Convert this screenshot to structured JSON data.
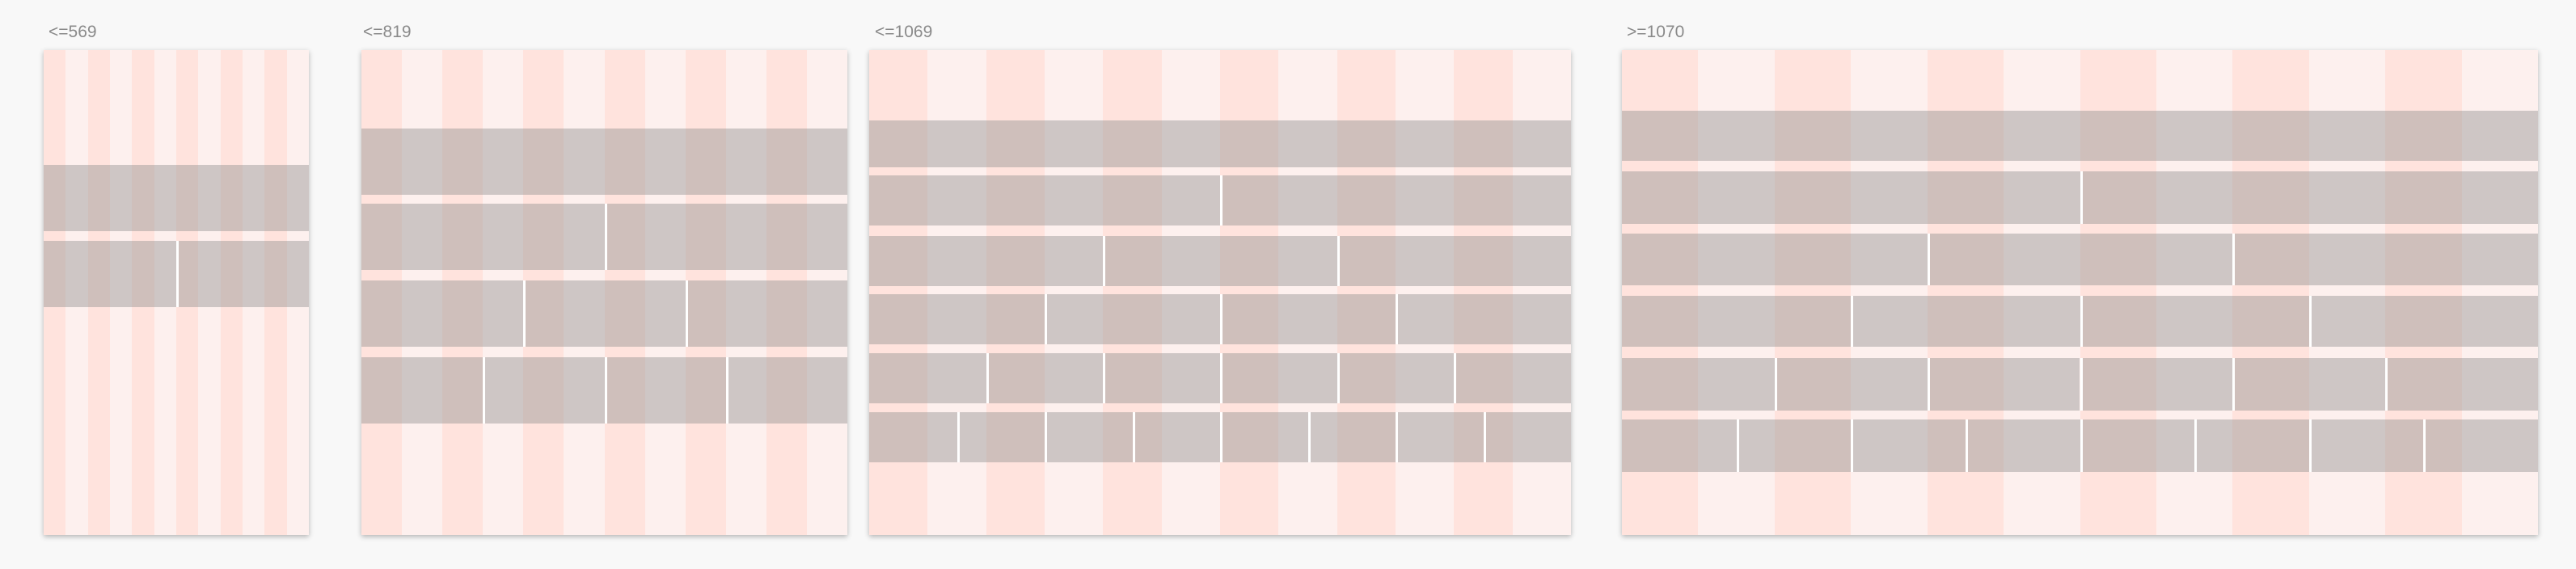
{
  "colors": {
    "column_dark": "#ffe3dd",
    "column_light": "#fdf0ee",
    "block": "#8c8c8c",
    "background": "#f8f8f8"
  },
  "breakpoints": [
    {
      "label": "<=569",
      "columns": 12,
      "row_splits": [
        1,
        2
      ]
    },
    {
      "label": "<=819",
      "columns": 12,
      "row_splits": [
        1,
        2,
        3,
        4
      ]
    },
    {
      "label": "<=1069",
      "columns": 12,
      "row_splits": [
        1,
        2,
        3,
        4,
        6,
        8
      ]
    },
    {
      "label": ">=1070",
      "columns": 12,
      "row_splits": [
        1,
        2,
        3,
        4,
        6,
        8
      ]
    }
  ]
}
